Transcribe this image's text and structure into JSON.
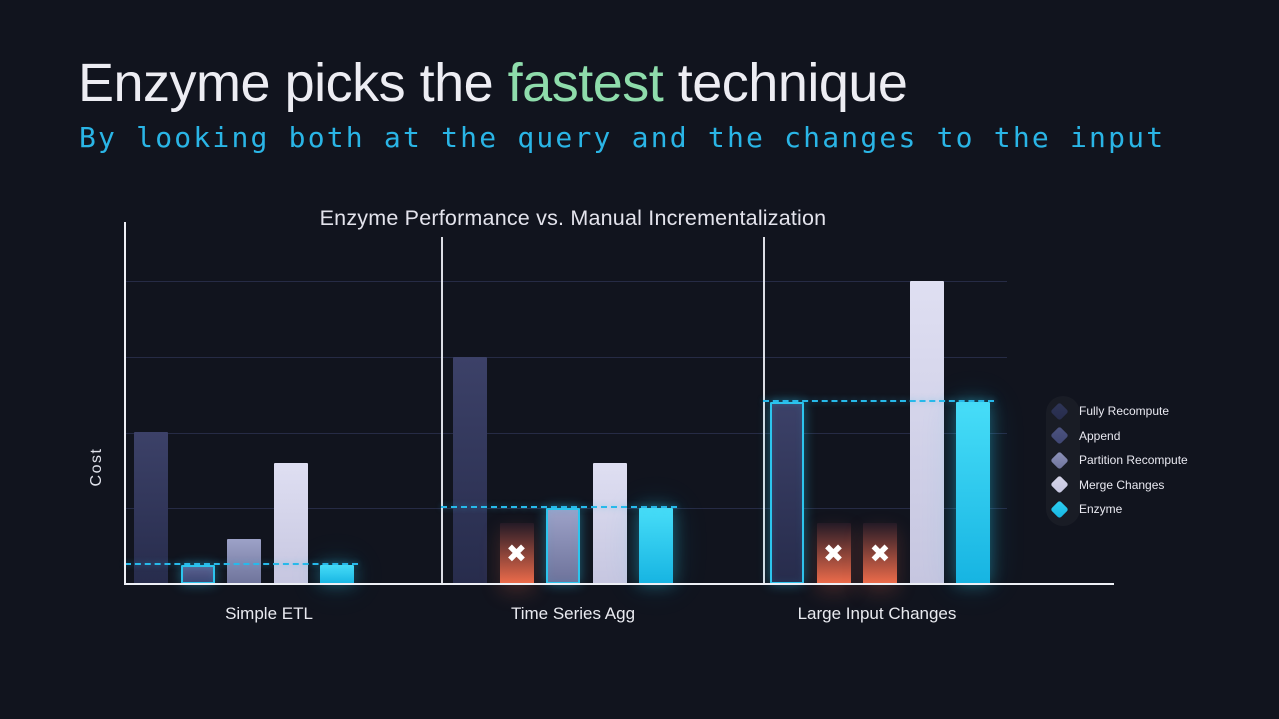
{
  "slide": {
    "title": {
      "prefix": "Enzyme picks the ",
      "highlight": "fastest",
      "suffix": " technique"
    },
    "subtitle": "By looking both at the query and the changes to the input"
  },
  "colors": {
    "background": "#11141e",
    "title_text": "#ededf3",
    "title_highlight": "#8edcab",
    "subtitle_text": "#2ab5e6",
    "axis": "#eef0f6",
    "gridline": "#262b45",
    "separator": "#eef0f6",
    "dashed_match_line": "#27b9ea",
    "highlight_outline": "#2cc5ee",
    "failed_gradient_top": "#241a26",
    "failed_gradient_bottom": "#ef6c4b",
    "x_mark": "#ffffff",
    "legend_text": "#e9e9f1"
  },
  "icons": {
    "x_mark_glyph": "✖",
    "legend_swatch_shape": "diamond"
  },
  "chart_data": {
    "type": "bar",
    "title": "Enzyme Performance vs. Manual Incrementalization",
    "xlabel": "",
    "ylabel": "Cost",
    "categories": [
      "Simple ETL",
      "Time Series Agg",
      "Large Input Changes"
    ],
    "series": [
      {
        "name": "Fully Recompute",
        "values": [
          2.0,
          3.0,
          2.4
        ],
        "failed": [
          false,
          false,
          false
        ],
        "picked": [
          false,
          false,
          true
        ],
        "gradient": [
          "#3c4168",
          "#272c4c"
        ],
        "legend_color": "#2e3557"
      },
      {
        "name": "Append",
        "values": [
          0.25,
          0.8,
          0.8
        ],
        "failed": [
          false,
          true,
          true
        ],
        "picked": [
          true,
          false,
          false
        ],
        "gradient": [
          "#5a6190",
          "#3e4572"
        ],
        "legend_color": "#4d5480"
      },
      {
        "name": "Partition Recompute",
        "values": [
          0.6,
          1.0,
          0.8
        ],
        "failed": [
          false,
          false,
          true
        ],
        "picked": [
          false,
          true,
          false
        ],
        "gradient": [
          "#9da2c8",
          "#6e739b"
        ],
        "legend_color": "#8e93bb"
      },
      {
        "name": "Merge Changes",
        "values": [
          1.6,
          1.6,
          4.0
        ],
        "failed": [
          false,
          false,
          false
        ],
        "picked": [
          false,
          false,
          false
        ],
        "gradient": [
          "#dfdff2",
          "#c6c6e0"
        ],
        "legend_color": "#d6d6ea"
      },
      {
        "name": "Enzyme",
        "values": [
          0.25,
          1.0,
          2.4
        ],
        "failed": [
          false,
          false,
          false
        ],
        "picked": [
          false,
          false,
          false
        ],
        "gradient": [
          "#47ddf8",
          "#16b4e2"
        ],
        "legend_color": "#2fd0f2"
      }
    ],
    "enzyme_reference_lines": [
      0.25,
      1.0,
      2.4
    ],
    "ylim": [
      0,
      4.8
    ],
    "grid": true,
    "gridline_values": [
      1,
      2,
      3,
      4
    ],
    "legend_position": "right"
  }
}
